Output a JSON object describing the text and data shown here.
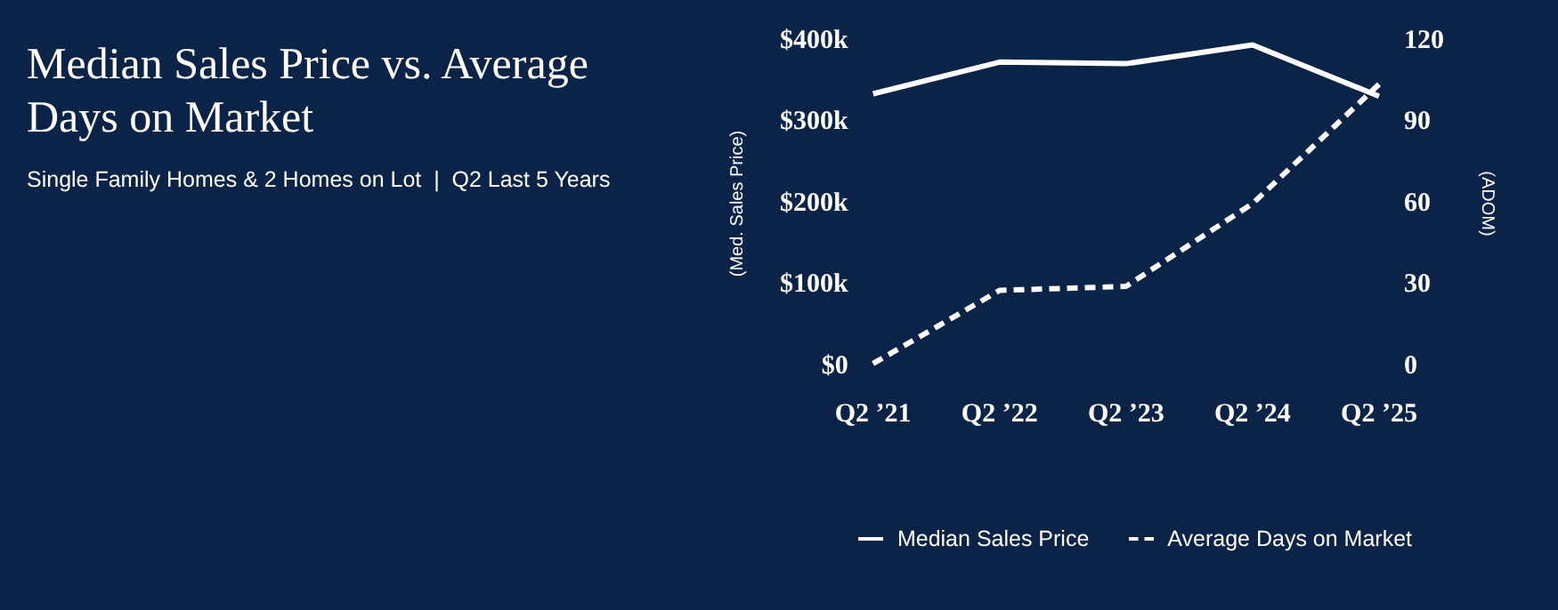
{
  "chart_data": {
    "type": "line",
    "title": "Median Sales Price vs. Average Days on Market",
    "subtitle": "Single Family Homes & 2 Homes on Lot  |  Q2 Last 5 Years",
    "ylabel": "(Med. Sales Price)",
    "y2label": "(ADOM)",
    "categories": [
      "Q2 ’21",
      "Q2 ’22",
      "Q2 ’23",
      "Q2 ’24",
      "Q2 ’25"
    ],
    "series": [
      {
        "name": "Median Sales Price",
        "color": "#ffffff",
        "line_style": "solid",
        "values": [
          335000,
          374000,
          372000,
          395000,
          332000
        ]
      },
      {
        "name": "Average Days on Market",
        "color": "#ffffff",
        "line_style": "dashed",
        "axis": "y2",
        "values": [
          1,
          28,
          29.5,
          60,
          104
        ]
      }
    ],
    "ylim": [
      0,
      400000
    ],
    "yticks": [
      {
        "value": 0,
        "label": "$0"
      },
      {
        "value": 100000,
        "label": "$100k"
      },
      {
        "value": 200000,
        "label": "$200k"
      },
      {
        "value": 300000,
        "label": "$300k"
      },
      {
        "value": 400000,
        "label": "$400k"
      }
    ],
    "y2lim": [
      0,
      120
    ],
    "y2ticks": [
      0,
      30,
      60,
      90,
      120
    ],
    "grid": false,
    "legend": "bottom",
    "marker": "none"
  }
}
